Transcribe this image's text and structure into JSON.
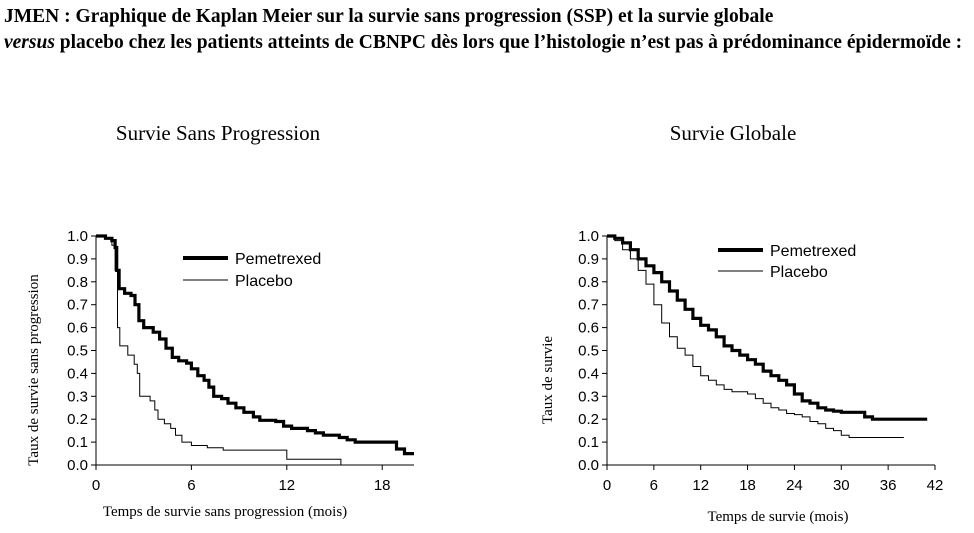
{
  "caption": {
    "part1": "JMEN : Graphique de Kaplan Meier sur la survie sans progression (SSP) et la survie globale",
    "part2_italic": "versus",
    "part3": " placebo chez les patients atteints de CBNPC dès lors que l’histologie n’est pas à prédominance épidermoïde :"
  },
  "chart_data": [
    {
      "type": "line",
      "title": "Survie Sans Progression",
      "xlabel": "Temps de survie sans progression (mois)",
      "ylabel": "Taux de survie sans progression",
      "xlim": [
        0,
        20
      ],
      "ylim": [
        0,
        1
      ],
      "xticks": [
        "0",
        "6",
        "12",
        "18"
      ],
      "yticks": [
        "0.0",
        "0.1",
        "0.2",
        "0.3",
        "0.4",
        "0.5",
        "0.6",
        "0.7",
        "0.8",
        "0.9",
        "1.0"
      ],
      "legend_position": "top-right",
      "grid": false,
      "series": [
        {
          "name": "Pemetrexed",
          "color": "#000000",
          "style": "thick",
          "points": [
            [
              0,
              1.0
            ],
            [
              0.6,
              0.99
            ],
            [
              1.0,
              0.98
            ],
            [
              1.2,
              0.95
            ],
            [
              1.3,
              0.85
            ],
            [
              1.45,
              0.77
            ],
            [
              1.8,
              0.75
            ],
            [
              2.2,
              0.74
            ],
            [
              2.45,
              0.7
            ],
            [
              2.7,
              0.63
            ],
            [
              3.0,
              0.6
            ],
            [
              3.6,
              0.58
            ],
            [
              4.0,
              0.55
            ],
            [
              4.4,
              0.51
            ],
            [
              4.8,
              0.47
            ],
            [
              5.2,
              0.455
            ],
            [
              5.7,
              0.445
            ],
            [
              6.0,
              0.42
            ],
            [
              6.4,
              0.39
            ],
            [
              6.8,
              0.37
            ],
            [
              7.1,
              0.34
            ],
            [
              7.4,
              0.3
            ],
            [
              7.9,
              0.29
            ],
            [
              8.3,
              0.27
            ],
            [
              8.8,
              0.25
            ],
            [
              9.3,
              0.23
            ],
            [
              9.9,
              0.21
            ],
            [
              10.3,
              0.195
            ],
            [
              11.3,
              0.19
            ],
            [
              11.8,
              0.17
            ],
            [
              12.3,
              0.16
            ],
            [
              13.3,
              0.15
            ],
            [
              13.8,
              0.14
            ],
            [
              14.3,
              0.13
            ],
            [
              15.3,
              0.12
            ],
            [
              15.8,
              0.11
            ],
            [
              16.3,
              0.1
            ],
            [
              18.3,
              0.1
            ],
            [
              18.9,
              0.07
            ],
            [
              19.4,
              0.05
            ],
            [
              20.0,
              0.05
            ]
          ]
        },
        {
          "name": "Placebo",
          "color": "#000000",
          "style": "thin",
          "points": [
            [
              0,
              1.0
            ],
            [
              0.6,
              0.99
            ],
            [
              1.0,
              0.96
            ],
            [
              1.2,
              0.85
            ],
            [
              1.35,
              0.6
            ],
            [
              1.5,
              0.52
            ],
            [
              2.0,
              0.48
            ],
            [
              2.4,
              0.44
            ],
            [
              2.6,
              0.4
            ],
            [
              2.75,
              0.3
            ],
            [
              3.4,
              0.28
            ],
            [
              3.7,
              0.24
            ],
            [
              3.9,
              0.2
            ],
            [
              4.3,
              0.18
            ],
            [
              4.7,
              0.16
            ],
            [
              5.0,
              0.13
            ],
            [
              5.4,
              0.1
            ],
            [
              6.0,
              0.085
            ],
            [
              7.0,
              0.075
            ],
            [
              8.0,
              0.065
            ],
            [
              11.8,
              0.065
            ],
            [
              12.0,
              0.025
            ],
            [
              15.2,
              0.025
            ],
            [
              15.4,
              0.0
            ]
          ]
        }
      ]
    },
    {
      "type": "line",
      "title": "Survie Globale",
      "xlabel": "Temps de survie (mois)",
      "ylabel": "Taux de survie",
      "xlim": [
        0,
        42
      ],
      "ylim": [
        0,
        1
      ],
      "xticks": [
        "0",
        "6",
        "12",
        "18",
        "24",
        "30",
        "36",
        "42"
      ],
      "yticks": [
        "0.0",
        "0.1",
        "0.2",
        "0.3",
        "0.4",
        "0.5",
        "0.6",
        "0.7",
        "0.8",
        "0.9",
        "1.0"
      ],
      "legend_position": "top-right",
      "grid": false,
      "series": [
        {
          "name": "Pemetrexed",
          "color": "#000000",
          "style": "thick",
          "points": [
            [
              0,
              1.0
            ],
            [
              1,
              0.99
            ],
            [
              2,
              0.97
            ],
            [
              3,
              0.94
            ],
            [
              4,
              0.9
            ],
            [
              5,
              0.87
            ],
            [
              6,
              0.84
            ],
            [
              7,
              0.8
            ],
            [
              8,
              0.76
            ],
            [
              9,
              0.72
            ],
            [
              10,
              0.68
            ],
            [
              11,
              0.64
            ],
            [
              12,
              0.61
            ],
            [
              13,
              0.59
            ],
            [
              14,
              0.56
            ],
            [
              15,
              0.52
            ],
            [
              16,
              0.5
            ],
            [
              17,
              0.48
            ],
            [
              18,
              0.46
            ],
            [
              19,
              0.44
            ],
            [
              20,
              0.41
            ],
            [
              21,
              0.39
            ],
            [
              22,
              0.37
            ],
            [
              23,
              0.35
            ],
            [
              24,
              0.31
            ],
            [
              25,
              0.28
            ],
            [
              26,
              0.27
            ],
            [
              27,
              0.25
            ],
            [
              28,
              0.24
            ],
            [
              29,
              0.235
            ],
            [
              30,
              0.23
            ],
            [
              32,
              0.23
            ],
            [
              33,
              0.21
            ],
            [
              34,
              0.2
            ],
            [
              41,
              0.2
            ]
          ]
        },
        {
          "name": "Placebo",
          "color": "#000000",
          "style": "thin",
          "points": [
            [
              0,
              1.0
            ],
            [
              1,
              0.98
            ],
            [
              2,
              0.94
            ],
            [
              3,
              0.9
            ],
            [
              4,
              0.85
            ],
            [
              5,
              0.79
            ],
            [
              6,
              0.7
            ],
            [
              7,
              0.62
            ],
            [
              8,
              0.56
            ],
            [
              9,
              0.51
            ],
            [
              10,
              0.48
            ],
            [
              11,
              0.43
            ],
            [
              12,
              0.39
            ],
            [
              13,
              0.37
            ],
            [
              14,
              0.35
            ],
            [
              15,
              0.33
            ],
            [
              16,
              0.32
            ],
            [
              17,
              0.32
            ],
            [
              18,
              0.31
            ],
            [
              19,
              0.29
            ],
            [
              20,
              0.27
            ],
            [
              21,
              0.25
            ],
            [
              22,
              0.24
            ],
            [
              23,
              0.225
            ],
            [
              24,
              0.22
            ],
            [
              25,
              0.21
            ],
            [
              26,
              0.19
            ],
            [
              27,
              0.18
            ],
            [
              28,
              0.16
            ],
            [
              29,
              0.15
            ],
            [
              30,
              0.13
            ],
            [
              31,
              0.12
            ],
            [
              38,
              0.12
            ]
          ]
        }
      ]
    }
  ]
}
